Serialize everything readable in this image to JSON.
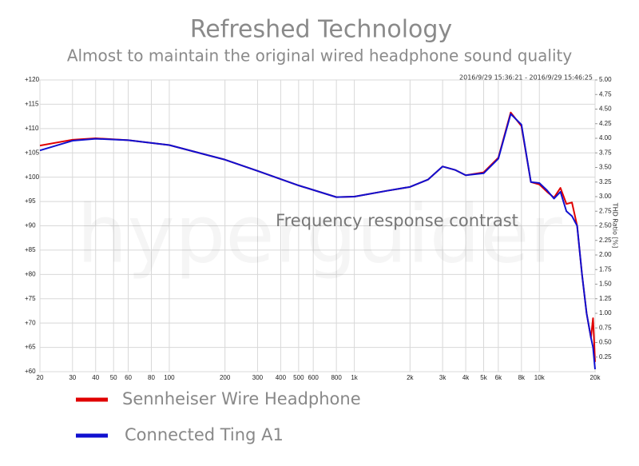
{
  "chart_data": {
    "type": "line",
    "title": "Refreshed Technology",
    "subtitle": "Almost to maintain the original wired headphone sound quality",
    "annotation": "Frequency response contrast",
    "timestamp": "2016/9/29 15:36:21 - 2016/9/29 15:46:25",
    "watermark": "hyperguider",
    "y2label": "THD Ratio [%]",
    "xscale": "log",
    "grid": true,
    "xlim": [
      20,
      20000
    ],
    "ylim": [
      60,
      120
    ],
    "y2lim": [
      0,
      5
    ],
    "xticks": [
      20,
      30,
      40,
      50,
      60,
      80,
      100,
      200,
      300,
      400,
      500,
      600,
      800,
      {
        "value": 1000,
        "label": "1k"
      },
      {
        "value": 2000,
        "label": "2k"
      },
      {
        "value": 3000,
        "label": "3k"
      },
      {
        "value": 4000,
        "label": "4k"
      },
      {
        "value": 5000,
        "label": "5k"
      },
      {
        "value": 6000,
        "label": "6k"
      },
      {
        "value": 8000,
        "label": "8k"
      },
      {
        "value": 10000,
        "label": "10k"
      },
      {
        "value": 20000,
        "label": "20k"
      }
    ],
    "yticks": [
      {
        "value": 60,
        "label": "+60"
      },
      {
        "value": 65,
        "label": "+65"
      },
      {
        "value": 70,
        "label": "+70"
      },
      {
        "value": 75,
        "label": "+75"
      },
      {
        "value": 80,
        "label": "+80"
      },
      {
        "value": 85,
        "label": "+85"
      },
      {
        "value": 90,
        "label": "+90"
      },
      {
        "value": 95,
        "label": "+95"
      },
      {
        "value": 100,
        "label": "+100"
      },
      {
        "value": 105,
        "label": "+105"
      },
      {
        "value": 110,
        "label": "+110"
      },
      {
        "value": 115,
        "label": "+115"
      },
      {
        "value": 120,
        "label": "+120"
      }
    ],
    "y2ticks": [
      0.25,
      {
        "value": 0.5,
        "label": "0.50"
      },
      0.75,
      {
        "value": 1,
        "label": "1.00"
      },
      1.25,
      {
        "value": 1.5,
        "label": "1.50"
      },
      1.75,
      {
        "value": 2,
        "label": "2.00"
      },
      2.25,
      {
        "value": 2.5,
        "label": "2.50"
      },
      2.75,
      {
        "value": 3,
        "label": "3.00"
      },
      3.25,
      {
        "value": 3.5,
        "label": "3.50"
      },
      3.75,
      {
        "value": 4,
        "label": "4.00"
      },
      4.25,
      {
        "value": 4.5,
        "label": "4.50"
      },
      4.75,
      {
        "value": 5,
        "label": "5.00"
      }
    ],
    "x": [
      20,
      30,
      40,
      60,
      100,
      200,
      300,
      500,
      800,
      1000,
      1500,
      2000,
      2500,
      3000,
      3500,
      4000,
      5000,
      6000,
      7000,
      8000,
      9000,
      10000,
      11000,
      12000,
      13000,
      14000,
      15000,
      16000,
      17000,
      18000,
      19000,
      19500,
      20000
    ],
    "series": [
      {
        "name": "Sennheiser Wire Headphone",
        "color": "#e00000",
        "values": [
          106.5,
          107.7,
          108.0,
          107.6,
          106.6,
          103.6,
          101.3,
          98.3,
          95.9,
          96.0,
          97.2,
          98.0,
          99.5,
          102.2,
          101.5,
          100.4,
          101.0,
          104.0,
          113.3,
          110.5,
          99.0,
          98.5,
          97.0,
          95.8,
          97.8,
          94.5,
          94.8,
          90.0,
          80.0,
          72.0,
          67.0,
          71.0,
          62.0
        ]
      },
      {
        "name": "Connected Ting A1",
        "color": "#1010d0",
        "values": [
          105.5,
          107.5,
          107.9,
          107.6,
          106.6,
          103.6,
          101.3,
          98.3,
          95.9,
          96.0,
          97.2,
          98.0,
          99.5,
          102.2,
          101.5,
          100.4,
          100.8,
          103.8,
          113.0,
          110.8,
          99.0,
          98.8,
          97.3,
          95.6,
          97.0,
          93.0,
          92.0,
          90.0,
          80.0,
          72.0,
          67.0,
          65.0,
          60.5
        ]
      }
    ]
  }
}
